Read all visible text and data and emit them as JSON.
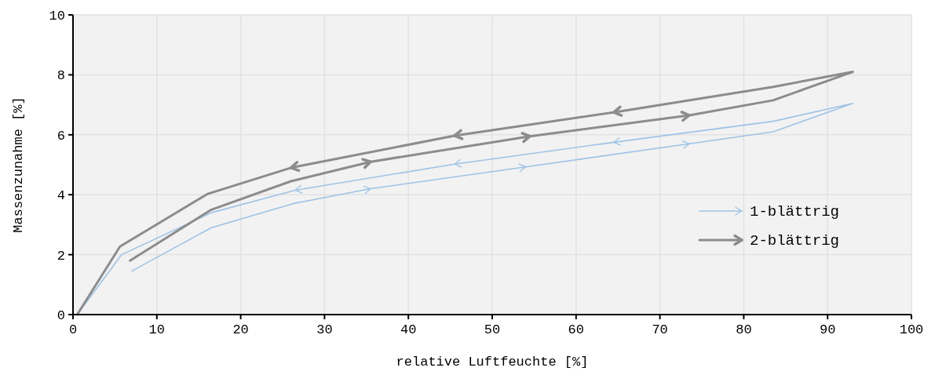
{
  "chart_data": {
    "type": "line",
    "xlabel": "relative Luftfeuchte [%]",
    "ylabel": "Massenzunahme [%]",
    "xlim": [
      0,
      100
    ],
    "xticks": [
      0,
      10,
      20,
      30,
      40,
      50,
      60,
      70,
      80,
      90,
      100
    ],
    "ylim": [
      0,
      10
    ],
    "yticks": [
      0,
      2,
      4,
      6,
      8,
      10
    ],
    "grid": true,
    "legend": "bottom right",
    "marker": "none",
    "line_style": "solid",
    "series": [
      {
        "name": "1-blättrig",
        "color": "#9dc3e6",
        "x": [
          7,
          16.5,
          26.2,
          35.5,
          54,
          73.5,
          83.5,
          93,
          83.5,
          64.5,
          45.5,
          26.5,
          16.5,
          5.8,
          0.5
        ],
        "values": [
          1.45,
          2.9,
          3.7,
          4.2,
          4.93,
          5.7,
          6.1,
          7.05,
          6.45,
          5.75,
          5.02,
          4.15,
          3.4,
          2.0,
          0
        ]
      },
      {
        "name": "2-blättrig",
        "color": "#8c8c8c",
        "x": [
          6.8,
          16.5,
          26,
          35.5,
          54.5,
          73.5,
          83.5,
          93,
          83.5,
          64.5,
          45.5,
          26,
          16,
          5.6,
          0.5
        ],
        "values": [
          1.8,
          3.5,
          4.45,
          5.1,
          5.95,
          6.65,
          7.15,
          8.1,
          7.6,
          6.75,
          5.97,
          4.9,
          4.02,
          2.27,
          0
        ]
      }
    ]
  }
}
